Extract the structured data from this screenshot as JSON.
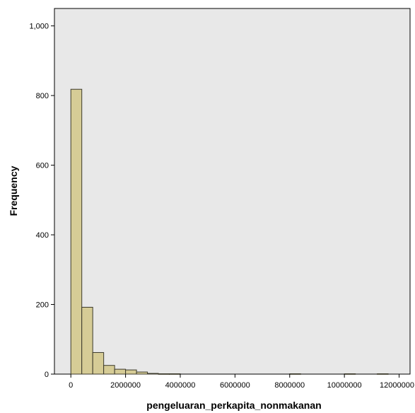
{
  "chart_data": {
    "type": "bar",
    "title": "",
    "xlabel": "pengeluaran_perkapita_nonmakanan",
    "ylabel": "Frequency",
    "xlim": [
      -600000,
      12400000
    ],
    "ylim": [
      0,
      1050
    ],
    "xticks": [
      0,
      2000000,
      4000000,
      6000000,
      8000000,
      10000000,
      12000000
    ],
    "xtick_labels": [
      "0",
      "2000000",
      "4000000",
      "6000000",
      "8000000",
      "10000000",
      "12000000"
    ],
    "yticks": [
      0,
      200,
      400,
      600,
      800,
      1000
    ],
    "ytick_labels": [
      "0",
      "200",
      "400",
      "600",
      "800",
      "1,000"
    ],
    "bin_width": 400000,
    "bins": [
      {
        "x0": 0,
        "x1": 400000,
        "count": 818
      },
      {
        "x0": 400000,
        "x1": 800000,
        "count": 192
      },
      {
        "x0": 800000,
        "x1": 1200000,
        "count": 62
      },
      {
        "x0": 1200000,
        "x1": 1600000,
        "count": 25
      },
      {
        "x0": 1600000,
        "x1": 2000000,
        "count": 14
      },
      {
        "x0": 2000000,
        "x1": 2400000,
        "count": 12
      },
      {
        "x0": 2400000,
        "x1": 2800000,
        "count": 6
      },
      {
        "x0": 2800000,
        "x1": 3200000,
        "count": 2
      },
      {
        "x0": 3200000,
        "x1": 3600000,
        "count": 1
      },
      {
        "x0": 3600000,
        "x1": 4000000,
        "count": 1
      },
      {
        "x0": 8000000,
        "x1": 8400000,
        "count": 1
      },
      {
        "x0": 10000000,
        "x1": 10400000,
        "count": 1
      },
      {
        "x0": 11200000,
        "x1": 11600000,
        "count": 1
      }
    ],
    "grid": false,
    "legend": "none",
    "colors": {
      "bar_fill": "#d6cc96",
      "bar_stroke": "#3c3a2c",
      "plot_background": "#e8e8e8",
      "axis": "#000000"
    }
  }
}
